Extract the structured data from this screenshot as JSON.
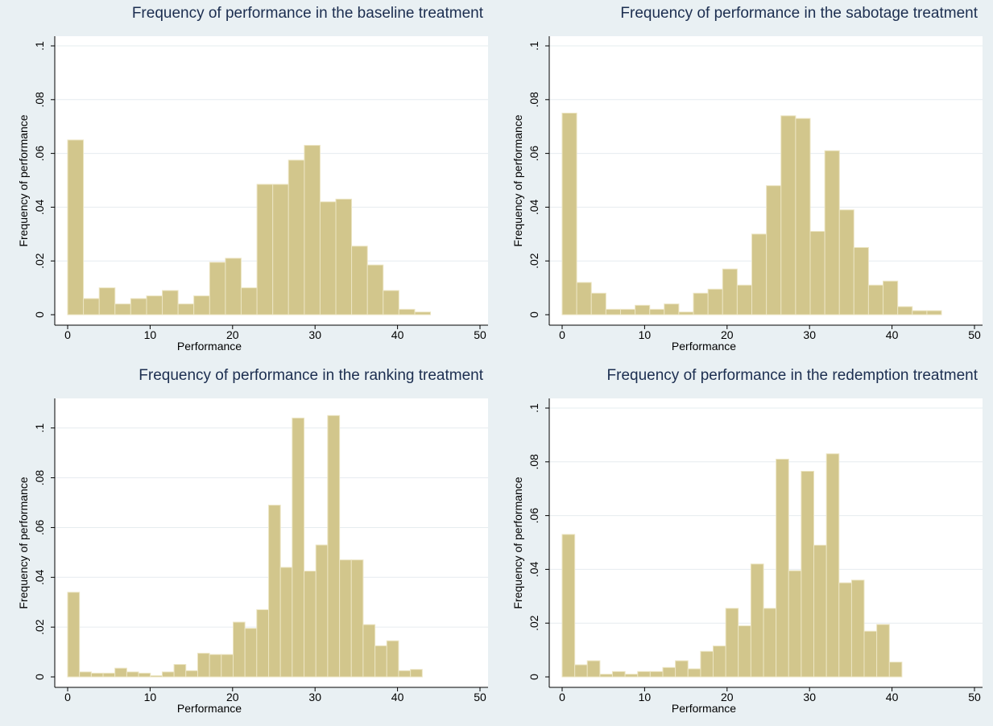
{
  "chart_data": [
    {
      "type": "histogram",
      "title": "Frequency of performance in the baseline treatment",
      "x_label": "Performance",
      "y_label": "Frequency of performance",
      "color": "#d2c68c",
      "bins": [
        0,
        1.91,
        3.83,
        5.74,
        7.65,
        9.57,
        11.48,
        13.39,
        15.3,
        17.22,
        19.13,
        21.04,
        22.96,
        24.87,
        26.78,
        28.7,
        30.61,
        32.52,
        34.43,
        36.35,
        38.26,
        40.17,
        42.09,
        44
      ],
      "values": [
        0.065,
        0.006,
        0.01,
        0.004,
        0.006,
        0.007,
        0.009,
        0.004,
        0.007,
        0.0195,
        0.021,
        0.01,
        0.0485,
        0.0485,
        0.0575,
        0.063,
        0.042,
        0.043,
        0.0255,
        0.0185,
        0.009,
        0.002,
        0.001
      ],
      "xlim": [
        0,
        50
      ],
      "xticks": [
        0,
        10,
        20,
        30,
        40,
        50
      ],
      "ylim": [
        0,
        0.1
      ],
      "yticks": [
        0,
        {
          "value": 0.02,
          "label": ".02"
        },
        {
          "value": 0.04,
          "label": ".04"
        },
        {
          "value": 0.06,
          "label": ".06"
        },
        {
          "value": 0.08,
          "label": ".08"
        },
        {
          "value": 0.1,
          "label": ".1"
        }
      ],
      "grid": true
    },
    {
      "type": "histogram",
      "title": "Frequency of performance in the sabotage treatment",
      "x_label": "Performance",
      "y_label": "Frequency of performance",
      "color": "#d2c68c",
      "bins": [
        0,
        1.77,
        3.54,
        5.31,
        7.08,
        8.85,
        10.62,
        12.38,
        14.15,
        15.92,
        17.69,
        19.46,
        21.23,
        23,
        24.77,
        26.54,
        28.31,
        30.08,
        31.85,
        33.62,
        35.38,
        37.15,
        38.92,
        40.69,
        42.46,
        44.23,
        46
      ],
      "values": [
        0.075,
        0.012,
        0.008,
        0.002,
        0.002,
        0.0035,
        0.002,
        0.004,
        0.001,
        0.008,
        0.0095,
        0.017,
        0.011,
        0.03,
        0.048,
        0.074,
        0.073,
        0.031,
        0.061,
        0.039,
        0.025,
        0.011,
        0.0125,
        0.003,
        0.0015,
        0.0015
      ],
      "xlim": [
        0,
        50
      ],
      "xticks": [
        0,
        10,
        20,
        30,
        40,
        50
      ],
      "ylim": [
        0,
        0.1
      ],
      "yticks": [
        0,
        {
          "value": 0.02,
          "label": ".02"
        },
        {
          "value": 0.04,
          "label": ".04"
        },
        {
          "value": 0.06,
          "label": ".06"
        },
        {
          "value": 0.08,
          "label": ".08"
        },
        {
          "value": 0.1,
          "label": ".1"
        }
      ],
      "grid": true
    },
    {
      "type": "histogram",
      "title": "Frequency of performance in the ranking treatment",
      "x_label": "Performance",
      "y_label": "Frequency of performance",
      "color": "#d2c68c",
      "bins": [
        0,
        1.43,
        2.87,
        4.3,
        5.73,
        7.17,
        8.6,
        10.03,
        11.47,
        12.9,
        14.33,
        15.77,
        17.2,
        18.63,
        20.07,
        21.5,
        22.93,
        24.37,
        25.8,
        27.23,
        28.67,
        30.1,
        31.53,
        32.97,
        34.4,
        35.83,
        37.27,
        38.7,
        40.13,
        41.57,
        43
      ],
      "values": [
        0.034,
        0.002,
        0.0015,
        0.0015,
        0.0035,
        0.002,
        0.0015,
        0.0005,
        0.002,
        0.005,
        0.0025,
        0.0095,
        0.009,
        0.009,
        0.022,
        0.0195,
        0.027,
        0.069,
        0.044,
        0.104,
        0.0425,
        0.053,
        0.105,
        0.047,
        0.047,
        0.021,
        0.0125,
        0.0145,
        0.0025,
        0.003
      ],
      "xlim": [
        0,
        50
      ],
      "xticks": [
        0,
        10,
        20,
        30,
        40,
        50
      ],
      "ylim": [
        0,
        0.108
      ],
      "yticks": [
        0,
        {
          "value": 0.02,
          "label": ".02"
        },
        {
          "value": 0.04,
          "label": ".04"
        },
        {
          "value": 0.06,
          "label": ".06"
        },
        {
          "value": 0.08,
          "label": ".08"
        },
        {
          "value": 0.1,
          "label": ".1"
        }
      ],
      "grid": true
    },
    {
      "type": "histogram",
      "title": "Frequency of performance in the redemption treatment",
      "x_label": "Performance",
      "y_label": "Frequency of performance",
      "color": "#d2c68c",
      "bins": [
        0,
        1.53,
        3.05,
        4.58,
        6.1,
        7.63,
        9.16,
        10.68,
        12.21,
        13.73,
        15.26,
        16.79,
        18.31,
        19.84,
        21.36,
        22.89,
        24.42,
        25.94,
        27.47,
        28.99,
        30.52,
        32.05,
        33.57,
        35.1,
        36.62,
        38.15,
        39.68,
        41.2
      ],
      "values": [
        0.053,
        0.0045,
        0.006,
        0.001,
        0.002,
        0.001,
        0.002,
        0.002,
        0.0035,
        0.006,
        0.003,
        0.0095,
        0.0115,
        0.0255,
        0.019,
        0.042,
        0.0255,
        0.081,
        0.0395,
        0.0765,
        0.049,
        0.083,
        0.035,
        0.036,
        0.017,
        0.0195,
        0.0055
      ],
      "xlim": [
        0,
        50
      ],
      "xticks": [
        0,
        10,
        20,
        30,
        40,
        50
      ],
      "ylim": [
        0,
        0.1
      ],
      "yticks": [
        0,
        {
          "value": 0.02,
          "label": ".02"
        },
        {
          "value": 0.04,
          "label": ".04"
        },
        {
          "value": 0.06,
          "label": ".06"
        },
        {
          "value": 0.08,
          "label": ".08"
        },
        {
          "value": 0.1,
          "label": ".1"
        }
      ],
      "grid": true
    }
  ]
}
